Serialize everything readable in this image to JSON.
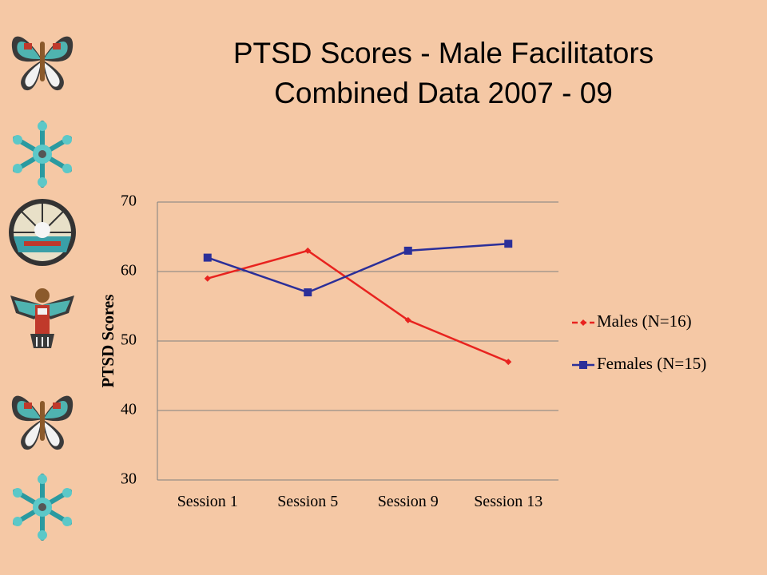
{
  "title": {
    "line1": "PTSD Scores - Male Facilitators",
    "line2": "Combined Data 2007 - 09"
  },
  "decorations": [
    "butterfly-icon",
    "snowflake-icon",
    "sun-face-icon",
    "thunderbird-icon",
    "butterfly-icon",
    "snowflake-icon"
  ],
  "colors": {
    "background": "#f5c8a5",
    "males": "#e8231f",
    "females": "#2b2f99",
    "gridline": "#808080"
  },
  "chart_data": {
    "type": "line",
    "categories": [
      "Session 1",
      "Session 5",
      "Session 9",
      "Session 13"
    ],
    "series": [
      {
        "name": "Males (N=16)",
        "values": [
          59,
          63,
          53,
          47
        ],
        "marker": "diamond"
      },
      {
        "name": "Females (N=15)",
        "values": [
          62,
          57,
          63,
          64
        ],
        "marker": "square"
      }
    ],
    "ylabel": "PTSD Scores",
    "xlabel": "",
    "ylim": [
      30,
      70
    ],
    "yticks": [
      30,
      40,
      50,
      60,
      70
    ],
    "grid": true,
    "legend_position": "right"
  }
}
